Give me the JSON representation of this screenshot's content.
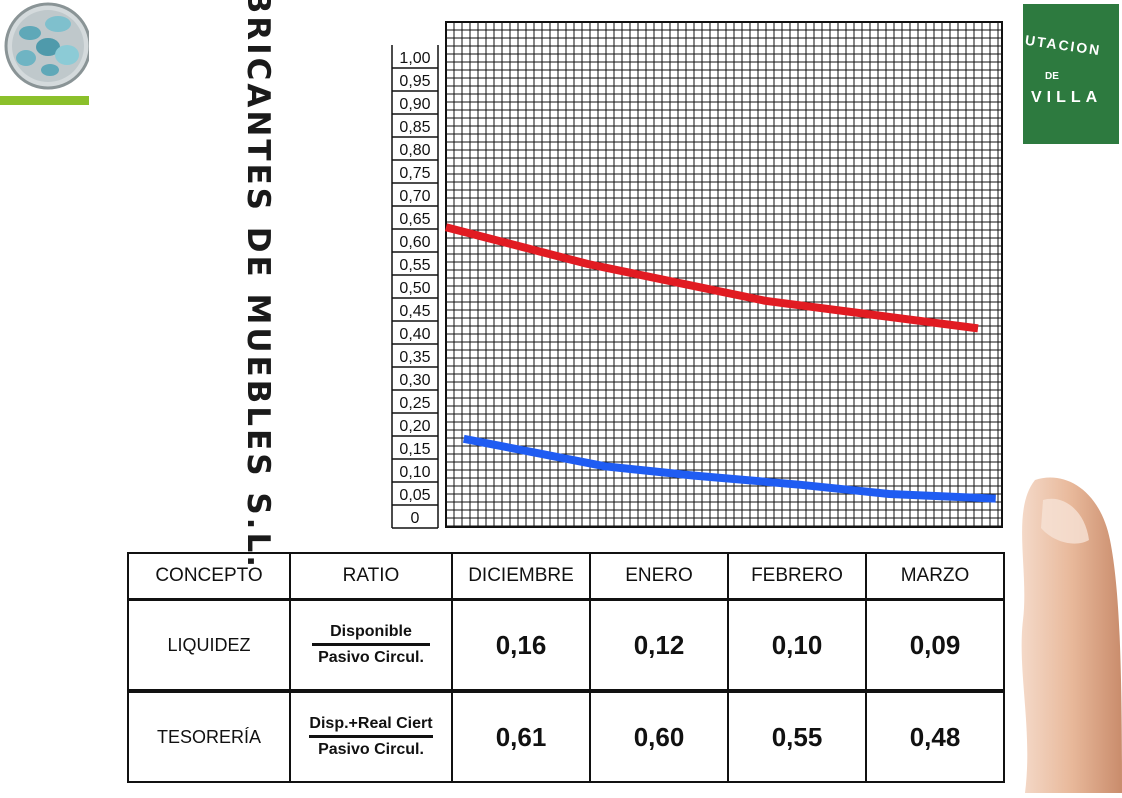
{
  "title": "FABRICANTES DE MUEBLES S.L.",
  "logos": {
    "left_name": "molecule-logo",
    "right_text_top": "UTACION",
    "right_text_mid": "DE",
    "right_text_bottom": "VILLA",
    "right_color": "#2d7a3f"
  },
  "chart_data": {
    "type": "line",
    "categories": [
      "DICIEMBRE",
      "ENERO",
      "FEBRERO",
      "MARZO"
    ],
    "ylim": [
      0,
      1.0
    ],
    "yticks": [
      "0",
      "0,05",
      "0,10",
      "0,15",
      "0,20",
      "0,25",
      "0,30",
      "0,35",
      "0,40",
      "0,45",
      "0,50",
      "0,55",
      "0,60",
      "0,65",
      "0,70",
      "0,75",
      "0,80",
      "0,85",
      "0,90",
      "0,95",
      "1,00"
    ],
    "grid": true,
    "series": [
      {
        "values": [
          0.63,
          0.6,
          0.55,
          0.51,
          0.47,
          0.44,
          0.41
        ],
        "x": [
          0,
          0.3,
          0.8,
          1.3,
          1.8,
          2.4,
          3.0
        ],
        "color": "#e11b22"
      },
      {
        "values": [
          0.17,
          0.14,
          0.11,
          0.09,
          0.07,
          0.05,
          0.04
        ],
        "x": [
          0.1,
          0.5,
          0.9,
          1.4,
          2.0,
          2.5,
          3.1
        ],
        "color": "#1f5cf2"
      }
    ]
  },
  "table": {
    "headers": [
      "CONCEPTO",
      "RATIO",
      "DICIEMBRE",
      "ENERO",
      "FEBRERO",
      "MARZO"
    ],
    "rows": [
      {
        "concept": "LIQUIDEZ",
        "ratio_num": "Disponible",
        "ratio_den": "Pasivo Circul.",
        "values": [
          "0,16",
          "0,12",
          "0,10",
          "0,09"
        ]
      },
      {
        "concept": "TESORERÍA",
        "ratio_num": "Disp.+Real Ciert",
        "ratio_den": "Pasivo Circul.",
        "values": [
          "0,61",
          "0,60",
          "0,55",
          "0,48"
        ]
      }
    ]
  },
  "colors": {
    "accent_green": "#8bc02b",
    "red_line": "#e11b22",
    "blue_line": "#1f5cf2"
  }
}
